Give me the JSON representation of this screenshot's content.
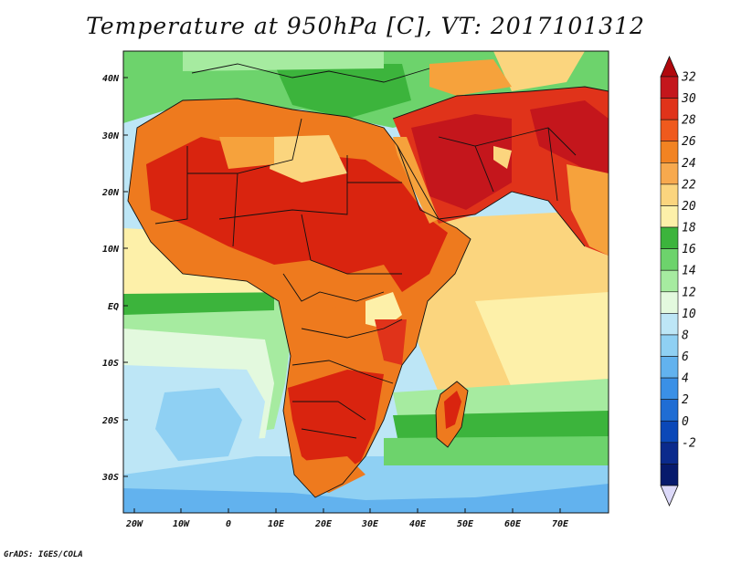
{
  "title": "Temperature at 950hPa [C], VT: 2017101312",
  "credit": "GrADS: IGES/COLA",
  "lat_labels": [
    "40N",
    "30N",
    "20N",
    "10N",
    "EQ",
    "10S",
    "20S",
    "30S"
  ],
  "lon_labels": [
    "20W",
    "10W",
    "0",
    "10E",
    "20E",
    "30E",
    "40E",
    "50E",
    "60E",
    "70E"
  ],
  "colorbar": {
    "labels": [
      "32",
      "30",
      "28",
      "26",
      "24",
      "22",
      "20",
      "18",
      "16",
      "14",
      "12",
      "10",
      "8",
      "6",
      "4",
      "2",
      "0",
      "-2"
    ],
    "colors": [
      "#c4161c",
      "#e0331a",
      "#ef5a1d",
      "#f28322",
      "#f7a94e",
      "#fbd57e",
      "#fdf0a9",
      "#3cb43c",
      "#6dd36c",
      "#a6eba0",
      "#e3f9de",
      "#bde6f6",
      "#8fd0f3",
      "#62b2ee",
      "#3a90e6",
      "#1f6dd4",
      "#0b48b8",
      "#0b2a8c",
      "#071a6c"
    ],
    "overflow_top": "#b0080d",
    "overflow_bottom": "#dcd9f9"
  },
  "palette": {
    "hot": "#d9240f",
    "warm": "#ee7a1e",
    "orange": "#f6a23c",
    "light_orange": "#fbd57e",
    "cream": "#fdf0a9",
    "green": "#3cb43c",
    "light_green": "#6dd36c",
    "pale_green": "#a6eba0",
    "mint": "#e3f9de",
    "pale_blue": "#bde6f6",
    "light_blue": "#8fd0f3",
    "blue": "#62b2ee",
    "border": "#111111"
  }
}
